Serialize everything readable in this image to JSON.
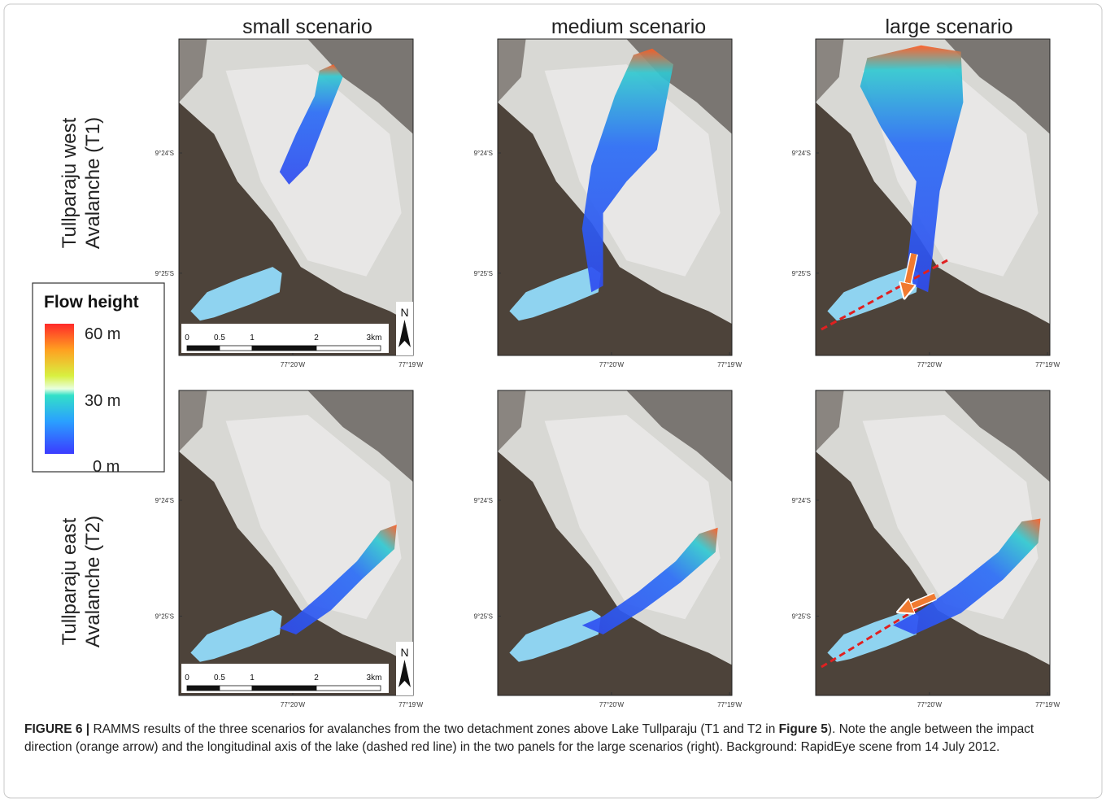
{
  "column_headers": [
    "small scenario",
    "medium scenario",
    "large scenario"
  ],
  "row_labels": [
    [
      "Tullparaju west",
      "Avalanche (T1)"
    ],
    [
      "Tullparaju east",
      "Avalanche (T2)"
    ]
  ],
  "legend": {
    "title": "Flow height",
    "labels": [
      "60 m",
      "30 m",
      "0 m"
    ]
  },
  "latitude_labels": [
    "9°24'S",
    "9°25'S"
  ],
  "longitude_labels": [
    "77°20'W",
    "77°19'W"
  ],
  "scale_bar": {
    "labels": [
      "0",
      "0.5",
      "1",
      "2",
      "3km"
    ]
  },
  "north_label": "N",
  "caption": {
    "segments": [
      "FIGURE 6 |",
      " RAMMS results of the three scenarios for avalanches from the two detachment zones above Lake Tullparaju (T1 and T2 in ",
      "Figure 5",
      "). Note the angle between the impact direction (orange arrow) and the longitudinal axis of the lake (dashed red line) in the two panels for the large scenarios (right). Background: RapidEye scene from 14 July 2012."
    ]
  }
}
